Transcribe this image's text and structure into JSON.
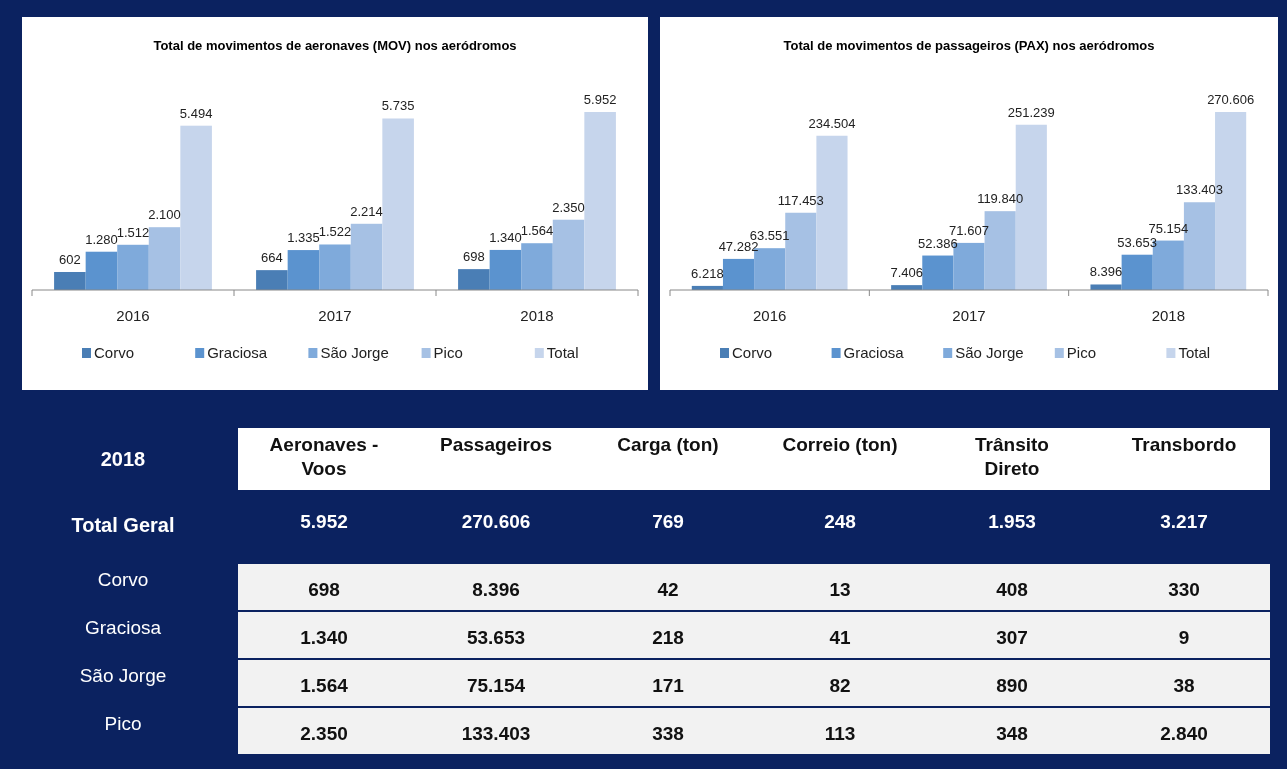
{
  "chart_data": [
    {
      "type": "bar",
      "title": "Total de movimentos de aeronaves (MOV) nos aeródromos",
      "categories": [
        "2016",
        "2017",
        "2018"
      ],
      "legend": "bottom",
      "series": [
        {
          "name": "Corvo",
          "color": "#4a7eb5",
          "values": [
            602,
            664,
            698
          ],
          "value_labels": [
            "602",
            "664",
            "698"
          ]
        },
        {
          "name": "Graciosa",
          "color": "#5b93cf",
          "values": [
            1280,
            1335,
            1340
          ],
          "value_labels": [
            "1.280",
            "1.335",
            "1.340"
          ]
        },
        {
          "name": "São Jorge",
          "color": "#7faadb",
          "values": [
            1512,
            1522,
            1564
          ],
          "value_labels": [
            "1.512",
            "1.522",
            "1.564"
          ]
        },
        {
          "name": "Pico",
          "color": "#a6c1e4",
          "values": [
            2100,
            2214,
            2350
          ],
          "value_labels": [
            "2.100",
            "2.214",
            "2.350"
          ]
        },
        {
          "name": "Total",
          "color": "#c6d5ec",
          "values": [
            5494,
            5735,
            5952
          ],
          "value_labels": [
            "5.494",
            "5.735",
            "5.952"
          ]
        }
      ]
    },
    {
      "type": "bar",
      "title": "Total de movimentos de passageiros (PAX) nos aeródromos",
      "categories": [
        "2016",
        "2017",
        "2018"
      ],
      "legend": "bottom",
      "series": [
        {
          "name": "Corvo",
          "color": "#4a7eb5",
          "values": [
            6218,
            7406,
            8396
          ],
          "value_labels": [
            "6.218",
            "7.406",
            "8.396"
          ]
        },
        {
          "name": "Graciosa",
          "color": "#5b93cf",
          "values": [
            47282,
            52386,
            53653
          ],
          "value_labels": [
            "47.282",
            "52.386",
            "53.653"
          ]
        },
        {
          "name": "São Jorge",
          "color": "#7faadb",
          "values": [
            63551,
            71607,
            75154
          ],
          "value_labels": [
            "63.551",
            "71.607",
            "75.154"
          ]
        },
        {
          "name": "Pico",
          "color": "#a6c1e4",
          "values": [
            117453,
            119840,
            133403
          ],
          "value_labels": [
            "117.453",
            "119.840",
            "133.403"
          ]
        },
        {
          "name": "Total",
          "color": "#c6d5ec",
          "values": [
            234504,
            251239,
            270606
          ],
          "value_labels": [
            "234.504",
            "251.239",
            "270.606"
          ]
        }
      ]
    },
    {
      "type": "other",
      "title": "2018",
      "categories": [
        "Aeronaves - Voos",
        "Passageiros",
        "Carga (ton)",
        "Correio (ton)",
        "Trânsito Direto",
        "Transbordo"
      ],
      "y_categories": [
        "Total Geral",
        "Corvo",
        "Graciosa",
        "São Jorge",
        "Pico"
      ],
      "cell_labels": [
        [
          "5.952",
          "270.606",
          "769",
          "248",
          "1.953",
          "3.217"
        ],
        [
          "698",
          "8.396",
          "42",
          "13",
          "408",
          "330"
        ],
        [
          "1.340",
          "53.653",
          "218",
          "41",
          "307",
          "9"
        ],
        [
          "1.564",
          "75.154",
          "171",
          "82",
          "890",
          "38"
        ],
        [
          "2.350",
          "133.403",
          "338",
          "113",
          "348",
          "2.840"
        ]
      ]
    }
  ]
}
